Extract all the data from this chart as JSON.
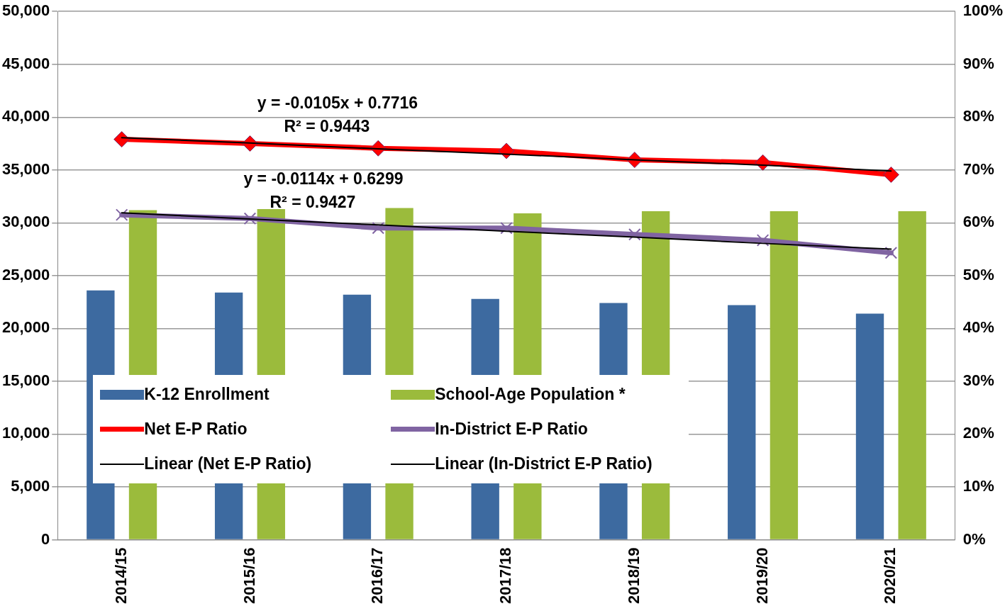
{
  "chart_data": {
    "type": "bar",
    "categories": [
      "2014/15",
      "2015/16",
      "2016/17",
      "2017/18",
      "2018/19",
      "2019/20",
      "2020/21"
    ],
    "series": [
      {
        "name": "K-12 Enrollment",
        "color": "#3d6aa0",
        "values": [
          23600,
          23400,
          23200,
          22800,
          22400,
          22200,
          21400
        ]
      },
      {
        "name": "School-Age Population *",
        "color": "#9bbb3c",
        "values": [
          31200,
          31300,
          31400,
          30900,
          31100,
          31100,
          31100
        ]
      },
      {
        "name": "Net E-P Ratio",
        "type": "line",
        "axis": "y2",
        "color": "#ff0000",
        "marker": "diamond",
        "values": [
          75.8,
          75.0,
          74.1,
          73.6,
          71.9,
          71.4,
          69.1
        ]
      },
      {
        "name": "In-District E-P Ratio",
        "type": "line",
        "axis": "y2",
        "color": "#8064a2",
        "marker": "cross",
        "values": [
          61.5,
          60.8,
          59.0,
          59.0,
          57.8,
          56.7,
          54.3
        ]
      },
      {
        "name": "Linear (Net E-P Ratio)",
        "type": "line",
        "axis": "y2",
        "color": "#000000",
        "marker": "none",
        "x": [
          "2014/15",
          "2015/16",
          "2016/17",
          "2017/18",
          "2018/19",
          "2019/20",
          "2020/21"
        ],
        "values": [
          76.1,
          75.1,
          74.0,
          73.0,
          71.9,
          70.9,
          69.8
        ]
      },
      {
        "name": "Linear (In-District E-P Ratio)",
        "type": "line",
        "axis": "y2",
        "color": "#000000",
        "marker": "none",
        "x": [
          "2014/15",
          "2015/16",
          "2016/17",
          "2017/18",
          "2018/19",
          "2019/20",
          "2020/21"
        ],
        "values": [
          61.9,
          60.7,
          59.6,
          58.4,
          57.3,
          56.1,
          55.0
        ]
      }
    ],
    "ylim": [
      0,
      50000
    ],
    "yticks": [
      {
        "value": 0,
        "label": "0"
      },
      {
        "value": 5000,
        "label": "5,000"
      },
      {
        "value": 10000,
        "label": "10,000"
      },
      {
        "value": 15000,
        "label": "15,000"
      },
      {
        "value": 20000,
        "label": "20,000"
      },
      {
        "value": 25000,
        "label": "25,000"
      },
      {
        "value": 30000,
        "label": "30,000"
      },
      {
        "value": 35000,
        "label": "35,000"
      },
      {
        "value": 40000,
        "label": "40,000"
      },
      {
        "value": 45000,
        "label": "45,000"
      },
      {
        "value": 50000,
        "label": "50,000"
      }
    ],
    "y2lim": [
      0,
      100
    ],
    "y2ticks": [
      {
        "value": 0,
        "label": "0%"
      },
      {
        "value": 10,
        "label": "10%"
      },
      {
        "value": 20,
        "label": "20%"
      },
      {
        "value": 30,
        "label": "30%"
      },
      {
        "value": 40,
        "label": "40%"
      },
      {
        "value": 50,
        "label": "50%"
      },
      {
        "value": 60,
        "label": "60%"
      },
      {
        "value": 70,
        "label": "70%"
      },
      {
        "value": 80,
        "label": "80%"
      },
      {
        "value": 90,
        "label": "90%"
      },
      {
        "value": 100,
        "label": "100%"
      }
    ],
    "annotations": [
      "y = -0.0105x + 0.7716",
      "R² = 0.9443",
      "y = -0.0114x + 0.6299",
      "R² = 0.9427"
    ],
    "grid": "y",
    "legend": "bottom left"
  }
}
